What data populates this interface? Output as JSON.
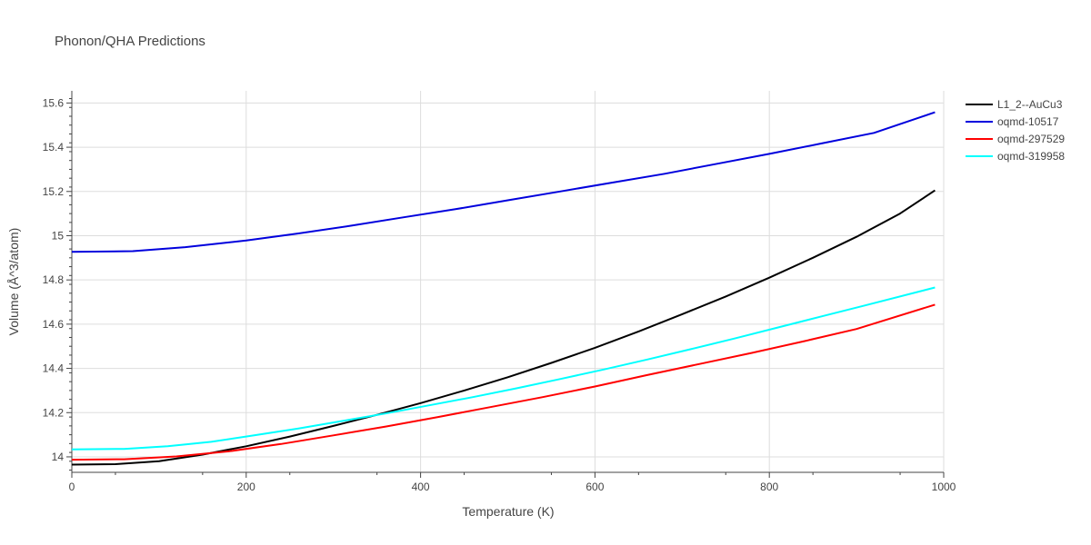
{
  "chart_data": {
    "type": "line",
    "title": "Phonon/QHA Predictions",
    "xlabel": "Temperature (K)",
    "ylabel": "Volume (Å^3/atom)",
    "xlim": [
      0,
      1000
    ],
    "ylim": [
      13.93,
      15.655
    ],
    "xticks": [
      0,
      200,
      400,
      600,
      800,
      1000
    ],
    "xtick_labels": [
      "0",
      "200",
      "400",
      "600",
      "800",
      "1000"
    ],
    "yticks": [
      14.0,
      14.2,
      14.4,
      14.6,
      14.8,
      15.0,
      15.2,
      15.4,
      15.6
    ],
    "ytick_labels": [
      "14",
      "14.2",
      "14.4",
      "14.6",
      "14.8",
      "15",
      "15.2",
      "15.4",
      "15.6"
    ],
    "grid": true,
    "legend_position": "top-right",
    "series": [
      {
        "name": "L1_2--AuCu3",
        "color": "#000000",
        "x": [
          0,
          50,
          100,
          150,
          200,
          250,
          300,
          350,
          400,
          450,
          500,
          550,
          600,
          650,
          700,
          750,
          800,
          850,
          900,
          950,
          990
        ],
        "y": [
          13.965,
          13.967,
          13.98,
          14.01,
          14.048,
          14.092,
          14.14,
          14.19,
          14.243,
          14.3,
          14.36,
          14.425,
          14.493,
          14.567,
          14.645,
          14.725,
          14.81,
          14.9,
          14.995,
          15.1,
          15.205
        ]
      },
      {
        "name": "oqmd-10517",
        "color": "#0000dd",
        "x": [
          0,
          70,
          130,
          200,
          260,
          320,
          380,
          440,
          500,
          560,
          620,
          680,
          740,
          800,
          860,
          920,
          990
        ],
        "y": [
          14.927,
          14.93,
          14.948,
          14.978,
          15.01,
          15.045,
          15.083,
          15.12,
          15.16,
          15.2,
          15.24,
          15.28,
          15.325,
          15.37,
          15.417,
          15.465,
          15.558
        ]
      },
      {
        "name": "oqmd-297529",
        "color": "#ff0000",
        "x": [
          0,
          60,
          120,
          180,
          240,
          300,
          360,
          420,
          480,
          540,
          600,
          660,
          720,
          780,
          840,
          900,
          990
        ],
        "y": [
          13.987,
          13.989,
          14.002,
          14.025,
          14.058,
          14.097,
          14.137,
          14.18,
          14.225,
          14.27,
          14.318,
          14.37,
          14.42,
          14.47,
          14.523,
          14.578,
          14.688
        ]
      },
      {
        "name": "oqmd-319958",
        "color": "#00ffff",
        "x": [
          0,
          60,
          110,
          160,
          210,
          260,
          310,
          360,
          410,
          460,
          510,
          560,
          610,
          660,
          710,
          760,
          810,
          860,
          910,
          990
        ],
        "y": [
          14.034,
          14.036,
          14.048,
          14.068,
          14.098,
          14.128,
          14.162,
          14.196,
          14.233,
          14.27,
          14.31,
          14.352,
          14.395,
          14.44,
          14.487,
          14.535,
          14.585,
          14.635,
          14.685,
          14.766
        ]
      }
    ]
  }
}
